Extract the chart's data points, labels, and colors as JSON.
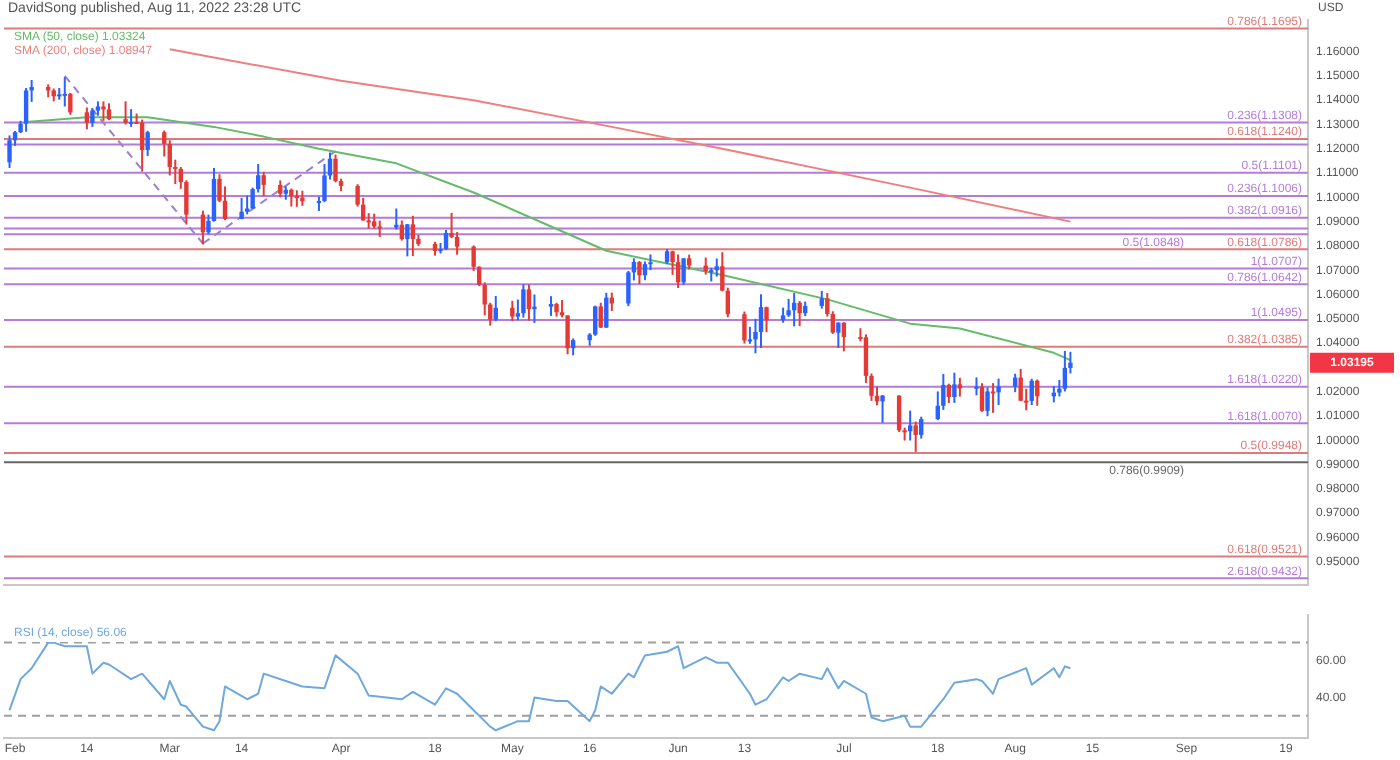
{
  "chart_data": [
    {
      "type": "candlestick",
      "title": "DavidSong published, Aug 11, 2022 23:28 UTC",
      "ylabel": "USD",
      "legend": "top left",
      "tick_labels": "y",
      "xlim": [
        "2022-01-30",
        "2022-09-23"
      ],
      "ylim": [
        0.9405,
        1.173
      ],
      "yticks": [
        {
          "value": 0.95,
          "label": "0.95000"
        },
        {
          "value": 0.96,
          "label": "0.96000"
        },
        {
          "value": 0.97,
          "label": "0.97000"
        },
        {
          "value": 0.98,
          "label": "0.98000"
        },
        {
          "value": 0.99,
          "label": "0.99000"
        },
        {
          "value": 1.0,
          "label": "1.00000"
        },
        {
          "value": 1.01,
          "label": "1.01000"
        },
        {
          "value": 1.02,
          "label": "1.02000"
        },
        {
          "value": 1.04,
          "label": "1.04000"
        },
        {
          "value": 1.05,
          "label": "1.05000"
        },
        {
          "value": 1.06,
          "label": "1.06000"
        },
        {
          "value": 1.07,
          "label": "1.07000"
        },
        {
          "value": 1.08,
          "label": "1.08000"
        },
        {
          "value": 1.09,
          "label": "1.09000"
        },
        {
          "value": 1.1,
          "label": "1.10000"
        },
        {
          "value": 1.11,
          "label": "1.11000"
        },
        {
          "value": 1.12,
          "label": "1.12000"
        },
        {
          "value": 1.13,
          "label": "1.13000"
        },
        {
          "value": 1.14,
          "label": "1.14000"
        },
        {
          "value": 1.15,
          "label": "1.15000"
        },
        {
          "value": 1.16,
          "label": "1.16000"
        }
      ],
      "x": [
        "2022-01-31",
        "2022-02-01",
        "2022-02-02",
        "2022-02-03",
        "2022-02-04",
        "2022-02-07",
        "2022-02-08",
        "2022-02-09",
        "2022-02-10",
        "2022-02-11",
        "2022-02-14",
        "2022-02-15",
        "2022-02-16",
        "2022-02-17",
        "2022-02-18",
        "2022-02-21",
        "2022-02-22",
        "2022-02-23",
        "2022-02-24",
        "2022-02-25",
        "2022-02-28",
        "2022-03-01",
        "2022-03-02",
        "2022-03-03",
        "2022-03-04",
        "2022-03-07",
        "2022-03-08",
        "2022-03-09",
        "2022-03-10",
        "2022-03-11",
        "2022-03-14",
        "2022-03-15",
        "2022-03-16",
        "2022-03-17",
        "2022-03-18",
        "2022-03-21",
        "2022-03-22",
        "2022-03-23",
        "2022-03-24",
        "2022-03-25",
        "2022-03-28",
        "2022-03-29",
        "2022-03-30",
        "2022-03-31",
        "2022-04-01",
        "2022-04-04",
        "2022-04-05",
        "2022-04-06",
        "2022-04-07",
        "2022-04-08",
        "2022-04-11",
        "2022-04-12",
        "2022-04-13",
        "2022-04-14",
        "2022-04-15",
        "2022-04-18",
        "2022-04-19",
        "2022-04-20",
        "2022-04-21",
        "2022-04-22",
        "2022-04-25",
        "2022-04-26",
        "2022-04-27",
        "2022-04-28",
        "2022-04-29",
        "2022-05-02",
        "2022-05-03",
        "2022-05-04",
        "2022-05-05",
        "2022-05-06",
        "2022-05-09",
        "2022-05-10",
        "2022-05-11",
        "2022-05-12",
        "2022-05-13",
        "2022-05-16",
        "2022-05-17",
        "2022-05-18",
        "2022-05-19",
        "2022-05-20",
        "2022-05-23",
        "2022-05-24",
        "2022-05-25",
        "2022-05-26",
        "2022-05-27",
        "2022-05-30",
        "2022-05-31",
        "2022-06-01",
        "2022-06-02",
        "2022-06-03",
        "2022-06-06",
        "2022-06-07",
        "2022-06-08",
        "2022-06-09",
        "2022-06-10",
        "2022-06-13",
        "2022-06-14",
        "2022-06-15",
        "2022-06-16",
        "2022-06-17",
        "2022-06-20",
        "2022-06-21",
        "2022-06-22",
        "2022-06-23",
        "2022-06-24",
        "2022-06-27",
        "2022-06-28",
        "2022-06-29",
        "2022-06-30",
        "2022-07-01",
        "2022-07-04",
        "2022-07-05",
        "2022-07-06",
        "2022-07-07",
        "2022-07-08",
        "2022-07-11",
        "2022-07-12",
        "2022-07-13",
        "2022-07-14",
        "2022-07-15",
        "2022-07-18",
        "2022-07-19",
        "2022-07-20",
        "2022-07-21",
        "2022-07-22",
        "2022-07-25",
        "2022-07-26",
        "2022-07-27",
        "2022-07-28",
        "2022-07-29",
        "2022-08-01",
        "2022-08-02",
        "2022-08-03",
        "2022-08-04",
        "2022-08-05",
        "2022-08-08",
        "2022-08-09",
        "2022-08-10",
        "2022-08-11"
      ],
      "ohlc": [
        [
          1.1144,
          1.1255,
          1.1121,
          1.1235
        ],
        [
          1.1235,
          1.1273,
          1.1212,
          1.1268
        ],
        [
          1.1268,
          1.1315,
          1.1265,
          1.1303
        ],
        [
          1.1303,
          1.145,
          1.127,
          1.144
        ],
        [
          1.144,
          1.1483,
          1.1393,
          1.1454
        ],
        [
          1.1454,
          1.1465,
          1.1412,
          1.144
        ],
        [
          1.144,
          1.1448,
          1.1395,
          1.1416
        ],
        [
          1.1416,
          1.145,
          1.1402,
          1.1424
        ],
        [
          1.1424,
          1.1495,
          1.1374,
          1.1426
        ],
        [
          1.1426,
          1.143,
          1.134,
          1.135
        ],
        [
          1.135,
          1.137,
          1.128,
          1.1307
        ],
        [
          1.1307,
          1.1366,
          1.129,
          1.1357
        ],
        [
          1.1357,
          1.1395,
          1.1336,
          1.1374
        ],
        [
          1.1374,
          1.1395,
          1.1315,
          1.1362
        ],
        [
          1.1362,
          1.1387,
          1.1318,
          1.1322
        ],
        [
          1.1322,
          1.1395,
          1.13,
          1.1307
        ],
        [
          1.1307,
          1.1363,
          1.129,
          1.131
        ],
        [
          1.131,
          1.1345,
          1.1306,
          1.1308
        ],
        [
          1.1308,
          1.132,
          1.1106,
          1.1195
        ],
        [
          1.1195,
          1.1274,
          1.117,
          1.1268
        ],
        [
          1.1268,
          1.1275,
          1.1168,
          1.122
        ],
        [
          1.122,
          1.1235,
          1.109,
          1.1125
        ],
        [
          1.1125,
          1.1155,
          1.1055,
          1.1117
        ],
        [
          1.1117,
          1.1125,
          1.1035,
          1.1063
        ],
        [
          1.1063,
          1.107,
          1.0888,
          1.0929
        ],
        [
          1.0929,
          1.0945,
          1.0806,
          1.0856
        ],
        [
          1.0856,
          1.0929,
          1.0848,
          1.0903
        ],
        [
          1.0903,
          1.1121,
          1.09,
          1.1076
        ],
        [
          1.1076,
          1.1095,
          1.098,
          1.0986
        ],
        [
          1.0986,
          1.1045,
          1.0906,
          1.0911
        ],
        [
          1.0911,
          1.0998,
          1.091,
          1.0941
        ],
        [
          1.0941,
          1.1007,
          1.093,
          1.0954
        ],
        [
          1.0954,
          1.104,
          1.0952,
          1.1034
        ],
        [
          1.1034,
          1.1137,
          1.102,
          1.1091
        ],
        [
          1.1091,
          1.1105,
          1.1005,
          1.1051
        ],
        [
          1.1051,
          1.107,
          1.1,
          1.1015
        ],
        [
          1.1015,
          1.1045,
          1.099,
          1.1031
        ],
        [
          1.1031,
          1.1036,
          1.0962,
          1.1005
        ],
        [
          1.1005,
          1.1029,
          1.0961,
          1.0999
        ],
        [
          1.0999,
          1.1027,
          1.0965,
          1.0984
        ],
        [
          1.0984,
          1.1002,
          1.0944,
          1.0985
        ],
        [
          1.0985,
          1.1137,
          1.098,
          1.109
        ],
        [
          1.109,
          1.1185,
          1.1073,
          1.1159
        ],
        [
          1.1159,
          1.1176,
          1.1062,
          1.1067
        ],
        [
          1.1067,
          1.1077,
          1.1026,
          1.1047
        ],
        [
          1.1047,
          1.1054,
          1.0962,
          1.097
        ],
        [
          1.097,
          1.0998,
          1.0904,
          1.0905
        ],
        [
          1.0905,
          1.0935,
          1.0871,
          1.0901
        ],
        [
          1.0901,
          1.0933,
          1.0871,
          1.088
        ],
        [
          1.088,
          1.0904,
          1.0837,
          1.0876
        ],
        [
          1.0876,
          1.0954,
          1.0868,
          1.0887
        ],
        [
          1.0887,
          1.0905,
          1.0822,
          1.0828
        ],
        [
          1.0828,
          1.089,
          1.0757,
          1.0889
        ],
        [
          1.0889,
          1.0924,
          1.0758,
          1.0829
        ],
        [
          1.0829,
          1.0845,
          1.08,
          1.0808
        ],
        [
          1.0808,
          1.0817,
          1.076,
          1.0779
        ],
        [
          1.0779,
          1.0812,
          1.0769,
          1.0787
        ],
        [
          1.0787,
          1.0866,
          1.0783,
          1.0853
        ],
        [
          1.0853,
          1.0936,
          1.0832,
          1.0837
        ],
        [
          1.0837,
          1.0857,
          1.0764,
          1.0797
        ],
        [
          1.0797,
          1.0802,
          1.0697,
          1.0714
        ],
        [
          1.0714,
          1.0716,
          1.0635,
          1.0639
        ],
        [
          1.0639,
          1.065,
          1.0514,
          1.0559
        ],
        [
          1.0559,
          1.0566,
          1.0472,
          1.0497
        ],
        [
          1.0497,
          1.0594,
          1.049,
          1.0545
        ],
        [
          1.0545,
          1.0574,
          1.049,
          1.0509
        ],
        [
          1.0509,
          1.0579,
          1.0494,
          1.0523
        ],
        [
          1.0523,
          1.0642,
          1.0505,
          1.0621
        ],
        [
          1.0621,
          1.0641,
          1.0493,
          1.054
        ],
        [
          1.054,
          1.06,
          1.0483,
          1.055
        ],
        [
          1.055,
          1.0593,
          1.0512,
          1.0561
        ],
        [
          1.0561,
          1.0566,
          1.0509,
          1.0527
        ],
        [
          1.0527,
          1.0577,
          1.0506,
          1.0514
        ],
        [
          1.0514,
          1.0514,
          1.0354,
          1.0379
        ],
        [
          1.0379,
          1.0419,
          1.035,
          1.0412
        ],
        [
          1.0412,
          1.0441,
          1.0389,
          1.0435
        ],
        [
          1.0435,
          1.0554,
          1.043,
          1.0551
        ],
        [
          1.0551,
          1.0566,
          1.0462,
          1.0464
        ],
        [
          1.0464,
          1.0607,
          1.0462,
          1.0587
        ],
        [
          1.0587,
          1.0608,
          1.0532,
          1.0563
        ],
        [
          1.0563,
          1.0697,
          1.0552,
          1.0691
        ],
        [
          1.0691,
          1.0749,
          1.0658,
          1.0734
        ],
        [
          1.0734,
          1.0738,
          1.0643,
          1.0679
        ],
        [
          1.0679,
          1.0736,
          1.0659,
          1.0725
        ],
        [
          1.0725,
          1.0765,
          1.07,
          1.0733
        ],
        [
          1.0733,
          1.0787,
          1.0725,
          1.0778
        ],
        [
          1.0778,
          1.078,
          1.0681,
          1.0733
        ],
        [
          1.0733,
          1.0765,
          1.0627,
          1.065
        ],
        [
          1.065,
          1.0749,
          1.064,
          1.0749
        ],
        [
          1.0749,
          1.0764,
          1.0703,
          1.0719
        ],
        [
          1.0719,
          1.0752,
          1.0682,
          1.0697
        ],
        [
          1.0697,
          1.071,
          1.0654,
          1.07
        ],
        [
          1.07,
          1.0748,
          1.0674,
          1.0716
        ],
        [
          1.0716,
          1.0774,
          1.0613,
          1.0616
        ],
        [
          1.0616,
          1.0628,
          1.0506,
          1.0519
        ],
        [
          1.0519,
          1.053,
          1.0398,
          1.0411
        ],
        [
          1.0411,
          1.0467,
          1.0397,
          1.0415
        ],
        [
          1.0415,
          1.05,
          1.0358,
          1.0446
        ],
        [
          1.0446,
          1.0601,
          1.038,
          1.0548
        ],
        [
          1.0548,
          1.055,
          1.0445,
          1.0494
        ],
        [
          1.0494,
          1.0546,
          1.0484,
          1.0514
        ],
        [
          1.0514,
          1.0582,
          1.0508,
          1.0535
        ],
        [
          1.0535,
          1.0606,
          1.0469,
          1.0566
        ],
        [
          1.0566,
          1.0573,
          1.047,
          1.0523
        ],
        [
          1.0523,
          1.0571,
          1.0511,
          1.0553
        ],
        [
          1.0553,
          1.0615,
          1.0542,
          1.0584
        ],
        [
          1.0584,
          1.0606,
          1.0509,
          1.052
        ],
        [
          1.052,
          1.0531,
          1.0438,
          1.0443
        ],
        [
          1.0443,
          1.0486,
          1.038,
          1.0484
        ],
        [
          1.0484,
          1.0486,
          1.0366,
          1.0425
        ],
        [
          1.0425,
          1.0461,
          1.0407,
          1.0424
        ],
        [
          1.0424,
          1.0436,
          1.0236,
          1.0265
        ],
        [
          1.0265,
          1.0275,
          1.0162,
          1.0183
        ],
        [
          1.0183,
          1.0221,
          1.0144,
          1.016
        ],
        [
          1.016,
          1.0186,
          1.0072,
          1.0184
        ],
        [
          1.0184,
          1.0185,
          1.0034,
          1.0041
        ],
        [
          1.0041,
          1.0052,
          0.9999,
          1.0037
        ],
        [
          1.0037,
          1.0122,
          0.9999,
          1.0061
        ],
        [
          1.0061,
          1.0077,
          0.9952,
          1.0022
        ],
        [
          1.0022,
          1.0097,
          1.0007,
          1.0087
        ],
        [
          1.0087,
          1.0201,
          1.0083,
          1.0142
        ],
        [
          1.0142,
          1.0273,
          1.0125,
          1.0228
        ],
        [
          1.0228,
          1.0233,
          1.0153,
          1.0178
        ],
        [
          1.0178,
          1.0278,
          1.0154,
          1.023
        ],
        [
          1.023,
          1.0257,
          1.018,
          1.0213
        ],
        [
          1.0213,
          1.0259,
          1.0185,
          1.022
        ],
        [
          1.022,
          1.0235,
          1.0117,
          1.0121
        ],
        [
          1.0121,
          1.0218,
          1.0099,
          1.0201
        ],
        [
          1.0201,
          1.0235,
          1.0113,
          1.0197
        ],
        [
          1.0197,
          1.0254,
          1.0145,
          1.0221
        ],
        [
          1.0221,
          1.0274,
          1.0198,
          1.0258
        ],
        [
          1.0258,
          1.0294,
          1.0161,
          1.0163
        ],
        [
          1.0163,
          1.0212,
          1.0123,
          1.0162
        ],
        [
          1.0162,
          1.0253,
          1.0145,
          1.0245
        ],
        [
          1.0245,
          1.025,
          1.0142,
          1.0181
        ],
        [
          1.0181,
          1.0223,
          1.0156,
          1.0196
        ],
        [
          1.0196,
          1.0248,
          1.018,
          1.0212
        ],
        [
          1.0212,
          1.0368,
          1.0201,
          1.0298
        ],
        [
          1.0298,
          1.0364,
          1.0275,
          1.03195
        ]
      ],
      "series": [
        {
          "type": "line",
          "name": "SMA (50, close) 1.03324",
          "color": "#66bb6a",
          "x": [
            "2022-02-03",
            "2022-02-14",
            "2022-02-25",
            "2022-03-09",
            "2022-03-18",
            "2022-03-28",
            "2022-04-11",
            "2022-04-25",
            "2022-05-09",
            "2022-05-19",
            "2022-06-09",
            "2022-06-28",
            "2022-07-13",
            "2022-07-22",
            "2022-08-08",
            "2022-08-11"
          ],
          "values": [
            1.131,
            1.133,
            1.133,
            1.129,
            1.125,
            1.12,
            1.114,
            1.102,
            1.088,
            1.078,
            1.068,
            1.058,
            1.048,
            1.046,
            1.036,
            1.033
          ]
        },
        {
          "type": "line",
          "name": "SMA (200, close) 1.08947",
          "color": "#ef7f7f",
          "x": [
            "2022-03-01",
            "2022-03-08",
            "2022-04-01",
            "2022-04-25",
            "2022-05-20",
            "2022-06-09",
            "2022-07-13",
            "2022-08-11"
          ],
          "values": [
            1.161,
            1.158,
            1.148,
            1.14,
            1.129,
            1.12,
            1.104,
            1.09
          ]
        },
        {
          "type": "line",
          "color": "#9c7fd0",
          "line_style": "dashed",
          "x": [
            "2022-02-10",
            "2022-03-07"
          ],
          "values": [
            1.15,
            1.081
          ]
        },
        {
          "type": "line",
          "color": "#9c7fd0",
          "line_style": "dashed",
          "x": [
            "2022-03-07",
            "2022-03-31"
          ],
          "values": [
            1.081,
            1.119
          ]
        }
      ],
      "ref_lines": [
        {
          "axis": "y",
          "value": 1.1695,
          "label": "0.786(1.1695)",
          "color": "#e07a7a"
        },
        {
          "axis": "y",
          "value": 1.1308,
          "label": "0.236(1.1308)",
          "color": "#b57bd8"
        },
        {
          "axis": "y",
          "value": 1.124,
          "label": "0.618(1.1240)",
          "color": "#e07a7a"
        },
        {
          "axis": "y",
          "value": 1.1217,
          "color": "#b57bd8"
        },
        {
          "axis": "y",
          "value": 1.1101,
          "label": "0.5(1.1101)",
          "color": "#b57bd8"
        },
        {
          "axis": "y",
          "value": 1.1006,
          "label": "0.236(1.1006)",
          "color": "#b57bd8"
        },
        {
          "axis": "y",
          "value": 1.0916,
          "label": "0.382(1.0916)",
          "color": "#b57bd8"
        },
        {
          "axis": "y",
          "value": 1.0872,
          "color": "#b57bd8"
        },
        {
          "axis": "y",
          "value": 1.0848,
          "label": "0.5(1.0848)",
          "color": "#b57bd8"
        },
        {
          "axis": "y",
          "value": 1.0786,
          "label": "0.618(1.0786)",
          "color": "#e07a7a"
        },
        {
          "axis": "y",
          "value": 1.0707,
          "label": "1(1.0707)",
          "color": "#b57bd8"
        },
        {
          "axis": "y",
          "value": 1.0642,
          "label": "0.786(1.0642)",
          "color": "#b57bd8"
        },
        {
          "axis": "y",
          "value": 1.0495,
          "label": "1(1.0495)",
          "color": "#b57bd8"
        },
        {
          "axis": "y",
          "value": 1.0385,
          "label": "0.382(1.0385)",
          "color": "#e07a7a"
        },
        {
          "axis": "y",
          "value": 1.022,
          "label": "1.618(1.0220)",
          "color": "#b57bd8"
        },
        {
          "axis": "y",
          "value": 1.007,
          "label": "1.618(1.0070)",
          "color": "#b57bd8"
        },
        {
          "axis": "y",
          "value": 0.9948,
          "label": "0.5(0.9948)",
          "color": "#e07a7a"
        },
        {
          "axis": "y",
          "value": 0.9909,
          "label": "0.786(0.9909)",
          "color": "#666666"
        },
        {
          "axis": "y",
          "value": 0.9521,
          "label": "0.618(0.9521)",
          "color": "#e07a7a"
        },
        {
          "axis": "y",
          "value": 0.9432,
          "label": "2.618(0.9432)",
          "color": "#b57bd8"
        }
      ],
      "annotations": [
        "1.03195"
      ]
    },
    {
      "type": "line",
      "legend": "top left",
      "xlim": [
        "2022-01-30",
        "2022-09-23"
      ],
      "ylim": [
        18,
        85
      ],
      "xticks": [
        {
          "value": "2022-02-01",
          "label": "Feb"
        },
        {
          "value": "2022-02-14",
          "label": "14"
        },
        {
          "value": "2022-03-01",
          "label": "Mar"
        },
        {
          "value": "2022-03-14",
          "label": "14"
        },
        {
          "value": "2022-04-01",
          "label": "Apr"
        },
        {
          "value": "2022-04-18",
          "label": "18"
        },
        {
          "value": "2022-05-02",
          "label": "May"
        },
        {
          "value": "2022-05-16",
          "label": "16"
        },
        {
          "value": "2022-06-01",
          "label": "Jun"
        },
        {
          "value": "2022-06-13",
          "label": "13"
        },
        {
          "value": "2022-07-01",
          "label": "Jul"
        },
        {
          "value": "2022-07-18",
          "label": "18"
        },
        {
          "value": "2022-08-01",
          "label": "Aug"
        },
        {
          "value": "2022-08-15",
          "label": "15"
        },
        {
          "value": "2022-09-01",
          "label": "Sep"
        },
        {
          "value": "2022-09-19",
          "label": "19"
        }
      ],
      "yticks": [
        {
          "value": 40,
          "label": "40.00"
        },
        {
          "value": 60,
          "label": "60.00"
        }
      ],
      "ref_lines": [
        {
          "axis": "y",
          "value": 70,
          "color": "#9e9e9e",
          "line_style": "dashed"
        },
        {
          "axis": "y",
          "value": 30,
          "color": "#9e9e9e",
          "line_style": "dashed"
        }
      ],
      "series": [
        {
          "name": "RSI (14, close) 56.06",
          "color": "#6fa8dc",
          "x": [
            "2022-01-31",
            "2022-02-02",
            "2022-02-04",
            "2022-02-07",
            "2022-02-08",
            "2022-02-10",
            "2022-02-14",
            "2022-02-15",
            "2022-02-17",
            "2022-02-18",
            "2022-02-22",
            "2022-02-24",
            "2022-02-28",
            "2022-03-01",
            "2022-03-03",
            "2022-03-04",
            "2022-03-07",
            "2022-03-09",
            "2022-03-10",
            "2022-03-11",
            "2022-03-15",
            "2022-03-17",
            "2022-03-18",
            "2022-03-22",
            "2022-03-25",
            "2022-03-29",
            "2022-03-31",
            "2022-04-04",
            "2022-04-06",
            "2022-04-12",
            "2022-04-14",
            "2022-04-18",
            "2022-04-20",
            "2022-04-22",
            "2022-04-25",
            "2022-04-28",
            "2022-04-29",
            "2022-05-03",
            "2022-05-05",
            "2022-05-06",
            "2022-05-10",
            "2022-05-12",
            "2022-05-16",
            "2022-05-17",
            "2022-05-18",
            "2022-05-20",
            "2022-05-23",
            "2022-05-24",
            "2022-05-26",
            "2022-05-30",
            "2022-06-01",
            "2022-06-02",
            "2022-06-06",
            "2022-06-08",
            "2022-06-10",
            "2022-06-14",
            "2022-06-15",
            "2022-06-17",
            "2022-06-20",
            "2022-06-21",
            "2022-06-23",
            "2022-06-27",
            "2022-06-28",
            "2022-06-30",
            "2022-07-01",
            "2022-07-05",
            "2022-07-06",
            "2022-07-08",
            "2022-07-12",
            "2022-07-13",
            "2022-07-15",
            "2022-07-19",
            "2022-07-21",
            "2022-07-25",
            "2022-07-26",
            "2022-07-28",
            "2022-07-29",
            "2022-08-03",
            "2022-08-04",
            "2022-08-08",
            "2022-08-09",
            "2022-08-10",
            "2022-08-11"
          ],
          "values": [
            33,
            50,
            56,
            70,
            70,
            68,
            68,
            53,
            59,
            58,
            50,
            53,
            39,
            49,
            36,
            35,
            24,
            22,
            27,
            46,
            39,
            42,
            53,
            49,
            46,
            45,
            63,
            53,
            41,
            39,
            43,
            36,
            45,
            42,
            33,
            24,
            22,
            27,
            27,
            40,
            38,
            38,
            27,
            33,
            46,
            42,
            53,
            51,
            63,
            65,
            68,
            56,
            62,
            59,
            59,
            42,
            36,
            39,
            51,
            49,
            53,
            50,
            56,
            45,
            49,
            42,
            29,
            27,
            30,
            24,
            24,
            39,
            48,
            50,
            49,
            42,
            50,
            56,
            47,
            56,
            51,
            57,
            56
          ]
        }
      ]
    }
  ]
}
